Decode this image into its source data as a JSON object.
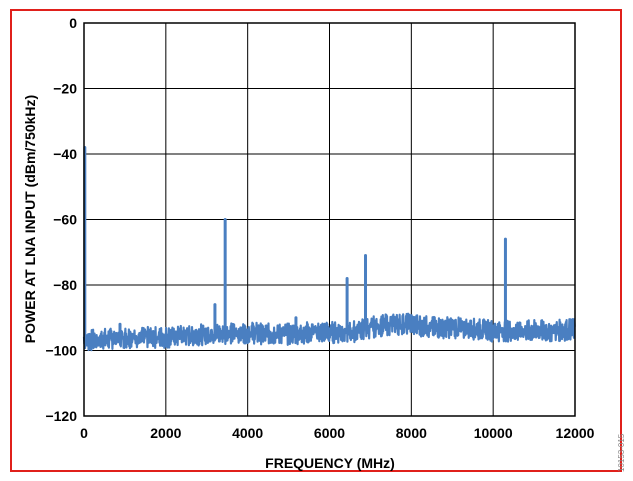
{
  "chart_data": {
    "type": "line",
    "xlabel": "FREQUENCY (MHz)",
    "ylabel": "POWER AT LNA INPUT (dBm/750kHz)",
    "xlim": [
      0,
      12000
    ],
    "ylim": [
      -120,
      0
    ],
    "x_ticks": [
      "0",
      "2000",
      "4000",
      "6000",
      "8000",
      "10000",
      "12000"
    ],
    "y_ticks": [
      "0",
      "−20",
      "−40",
      "−60",
      "−80",
      "−100",
      "−120"
    ],
    "grid": true,
    "series": [
      {
        "color": "#4a7fc1",
        "noise_floor": [
          {
            "x": 0,
            "y": -97
          },
          {
            "x": 500,
            "y": -96.5
          },
          {
            "x": 1000,
            "y": -96
          },
          {
            "x": 1500,
            "y": -96
          },
          {
            "x": 2000,
            "y": -96
          },
          {
            "x": 2500,
            "y": -95.5
          },
          {
            "x": 3000,
            "y": -95
          },
          {
            "x": 3500,
            "y": -95
          },
          {
            "x": 4000,
            "y": -94.5
          },
          {
            "x": 4500,
            "y": -95
          },
          {
            "x": 5000,
            "y": -95
          },
          {
            "x": 5500,
            "y": -94.5
          },
          {
            "x": 6000,
            "y": -94.5
          },
          {
            "x": 6500,
            "y": -94.5
          },
          {
            "x": 7000,
            "y": -93
          },
          {
            "x": 7500,
            "y": -92
          },
          {
            "x": 8000,
            "y": -92
          },
          {
            "x": 8500,
            "y": -93
          },
          {
            "x": 9000,
            "y": -93
          },
          {
            "x": 9500,
            "y": -93.5
          },
          {
            "x": 10000,
            "y": -94
          },
          {
            "x": 10500,
            "y": -94
          },
          {
            "x": 11000,
            "y": -94
          },
          {
            "x": 11500,
            "y": -94
          },
          {
            "x": 12000,
            "y": -93.5
          }
        ],
        "spurs": [
          {
            "x": 20,
            "y": -38
          },
          {
            "x": 880,
            "y": -92
          },
          {
            "x": 3200,
            "y": -86
          },
          {
            "x": 3450,
            "y": -60
          },
          {
            "x": 5180,
            "y": -90
          },
          {
            "x": 6430,
            "y": -78
          },
          {
            "x": 6880,
            "y": -71
          },
          {
            "x": 9450,
            "y": -91
          },
          {
            "x": 10300,
            "y": -66
          }
        ]
      }
    ]
  },
  "watermark": "10153-015"
}
